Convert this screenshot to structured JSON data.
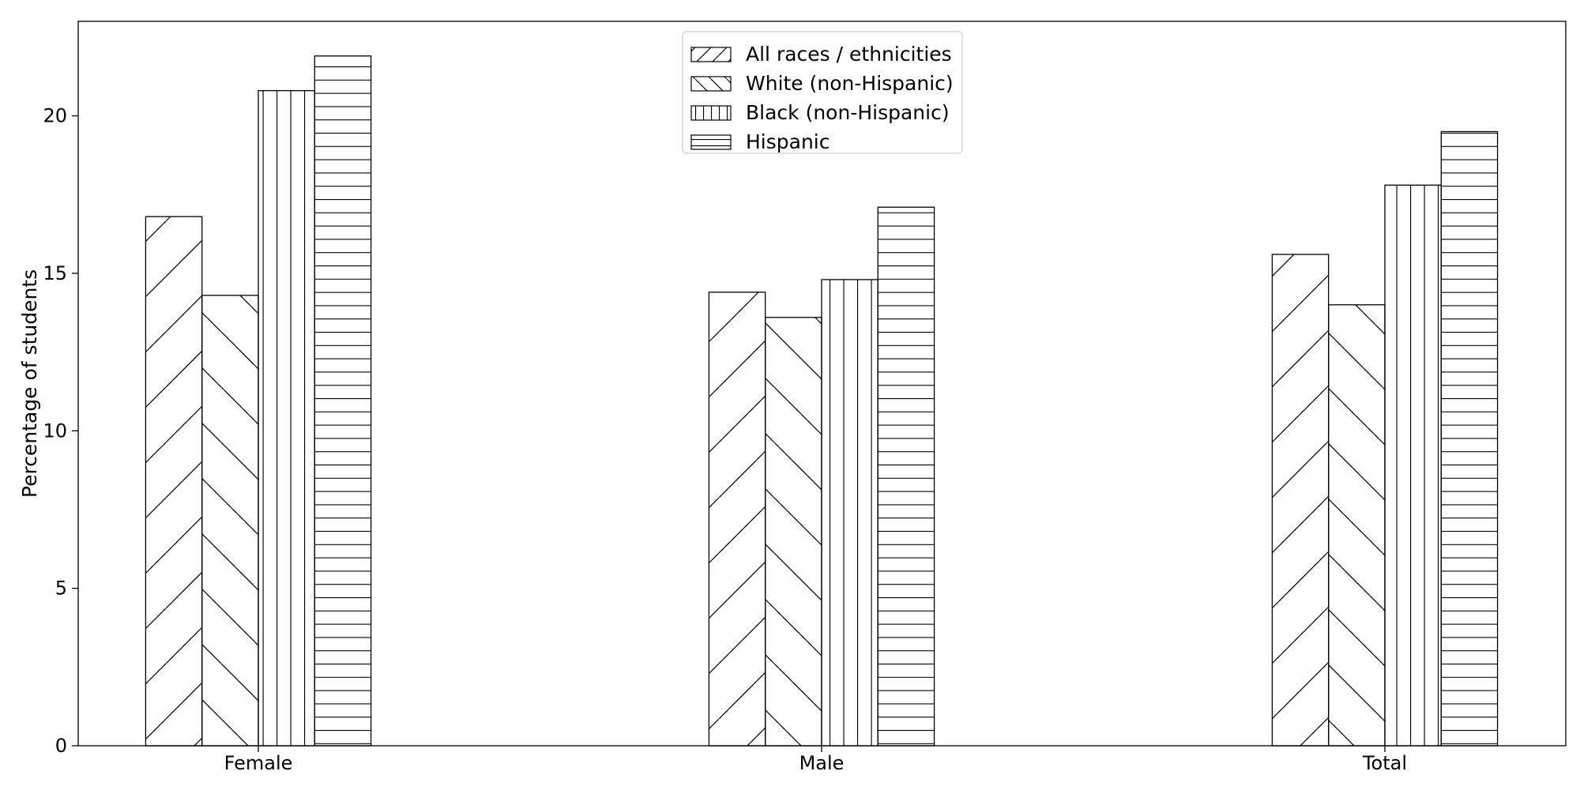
{
  "chart_data": {
    "type": "bar",
    "title": "",
    "xlabel": "",
    "ylabel": "Percentage of students",
    "categories": [
      "Female",
      "Male",
      "Total"
    ],
    "series": [
      {
        "name": "All races / ethnicities",
        "values": [
          16.8,
          14.4,
          15.6
        ],
        "hatch": "forward-diagonal"
      },
      {
        "name": "White (non-Hispanic)",
        "values": [
          14.3,
          13.6,
          14.0
        ],
        "hatch": "back-diagonal"
      },
      {
        "name": "Black (non-Hispanic)",
        "values": [
          20.8,
          14.8,
          17.8
        ],
        "hatch": "vertical"
      },
      {
        "name": "Hispanic",
        "values": [
          21.9,
          17.1,
          19.5
        ],
        "hatch": "horizontal"
      }
    ],
    "ylim": [
      0,
      23
    ],
    "yticks": [
      0,
      5,
      10,
      15,
      20
    ],
    "grid": false,
    "legend_position": "top-center",
    "colors": {
      "fill": "#ffffff",
      "edge": "#000000"
    }
  }
}
